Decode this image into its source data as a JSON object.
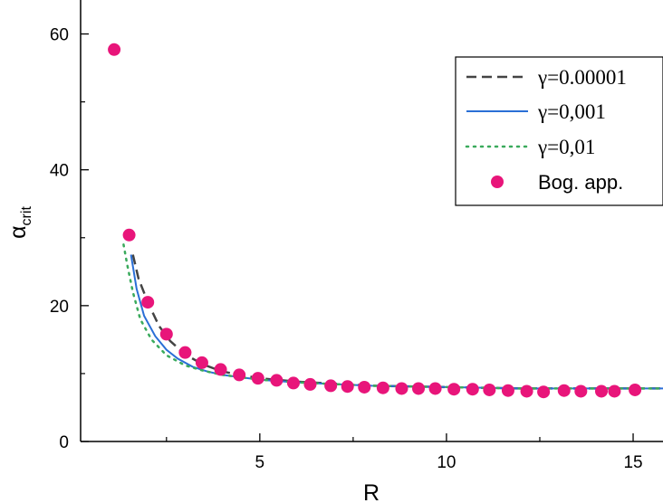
{
  "chart_data": {
    "type": "line",
    "xlabel": "R",
    "ylabel": "α",
    "ylabel_sub": "crit",
    "xlim": [
      0.2,
      15.8
    ],
    "ylim": [
      0,
      65
    ],
    "xticks": [
      5,
      10,
      15
    ],
    "yticks": [
      0,
      20,
      40,
      60
    ],
    "grid": false,
    "legend_position": "top-right",
    "series": [
      {
        "name": "γ=0.00001",
        "style": "dashed",
        "color": "#444444",
        "x": [
          1.6,
          1.75,
          2.0,
          2.3,
          2.6,
          3.0,
          3.5,
          4.0,
          5.0,
          6.0,
          8.0,
          10.0,
          12.0,
          14.0,
          15.8
        ],
        "y": [
          27.5,
          24.0,
          20.5,
          17.0,
          14.8,
          12.8,
          11.3,
          10.3,
          9.3,
          8.8,
          8.2,
          8.0,
          7.8,
          7.8,
          7.8
        ]
      },
      {
        "name": "γ=0,001",
        "style": "solid",
        "color": "#2a6fd6",
        "x": [
          1.55,
          1.7,
          1.9,
          2.2,
          2.5,
          2.8,
          3.2,
          3.6,
          4.0,
          5.0,
          6.0,
          8.0,
          10.0,
          12.0,
          14.0,
          15.8
        ],
        "y": [
          27.5,
          22.5,
          18.5,
          15.5,
          13.5,
          12.2,
          11.0,
          10.3,
          9.8,
          9.1,
          8.7,
          8.2,
          8.0,
          7.8,
          7.8,
          7.8
        ]
      },
      {
        "name": "γ=0,01",
        "style": "dotted",
        "color": "#3aaa5c",
        "x": [
          1.35,
          1.45,
          1.6,
          1.8,
          2.1,
          2.5,
          3.0,
          3.5,
          4.0,
          5.0,
          6.0,
          8.0,
          10.0,
          12.0,
          14.0,
          15.8
        ],
        "y": [
          29.0,
          26.0,
          22.0,
          18.0,
          15.0,
          12.7,
          11.2,
          10.4,
          9.8,
          9.1,
          8.7,
          8.2,
          8.0,
          7.8,
          7.8,
          7.8
        ]
      },
      {
        "name": "Bog. app.",
        "style": "markers",
        "color": "#e8157a",
        "x": [
          1.1,
          1.5,
          2.0,
          2.5,
          3.0,
          3.45,
          3.95,
          4.45,
          4.95,
          5.45,
          5.9,
          6.35,
          6.9,
          7.35,
          7.8,
          8.3,
          8.8,
          9.25,
          9.7,
          10.2,
          10.7,
          11.15,
          11.65,
          12.15,
          12.6,
          13.15,
          13.6,
          14.15,
          14.5,
          15.05
        ],
        "y": [
          57.7,
          30.4,
          20.5,
          15.8,
          13.1,
          11.6,
          10.6,
          9.8,
          9.3,
          9.0,
          8.6,
          8.4,
          8.2,
          8.1,
          8.0,
          7.9,
          7.8,
          7.8,
          7.8,
          7.7,
          7.7,
          7.6,
          7.5,
          7.4,
          7.3,
          7.5,
          7.4,
          7.4,
          7.4,
          7.6
        ]
      }
    ]
  }
}
